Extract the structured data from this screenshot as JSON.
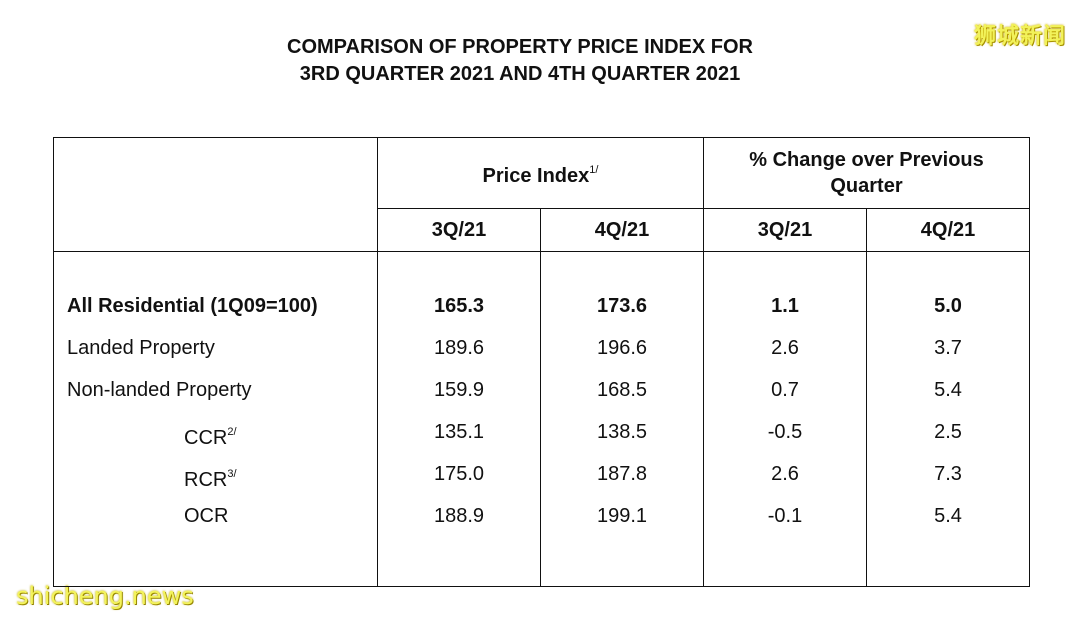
{
  "title": {
    "line1": "COMPARISON OF PROPERTY PRICE INDEX FOR",
    "line2": "3RD QUARTER 2021 AND 4TH QUARTER 2021"
  },
  "watermarks": {
    "top_right": "狮城新闻",
    "bottom_left": "shicheng.news"
  },
  "table": {
    "group_headers": {
      "price_index": "Price Index",
      "price_index_note": "1/",
      "pct_change": "% Change over Previous Quarter"
    },
    "sub_headers": [
      "3Q/21",
      "4Q/21",
      "3Q/21",
      "4Q/21"
    ],
    "rows": [
      {
        "label": "All Residential (1Q09=100)",
        "note": "",
        "pi_3q": "165.3",
        "pi_4q": "173.6",
        "chg_3q": "1.1",
        "chg_4q": "5.0"
      },
      {
        "label": "Landed Property",
        "note": "",
        "pi_3q": "189.6",
        "pi_4q": "196.6",
        "chg_3q": "2.6",
        "chg_4q": "3.7"
      },
      {
        "label": "Non-landed Property",
        "note": "",
        "pi_3q": "159.9",
        "pi_4q": "168.5",
        "chg_3q": "0.7",
        "chg_4q": "5.4"
      },
      {
        "label": "CCR",
        "note": "2/",
        "pi_3q": "135.1",
        "pi_4q": "138.5",
        "chg_3q": "-0.5",
        "chg_4q": "2.5"
      },
      {
        "label": "RCR",
        "note": "3/",
        "pi_3q": "175.0",
        "pi_4q": "187.8",
        "chg_3q": "2.6",
        "chg_4q": "7.3"
      },
      {
        "label": "OCR",
        "note": "",
        "pi_3q": "188.9",
        "pi_4q": "199.1",
        "chg_3q": "-0.1",
        "chg_4q": "5.4"
      }
    ]
  }
}
